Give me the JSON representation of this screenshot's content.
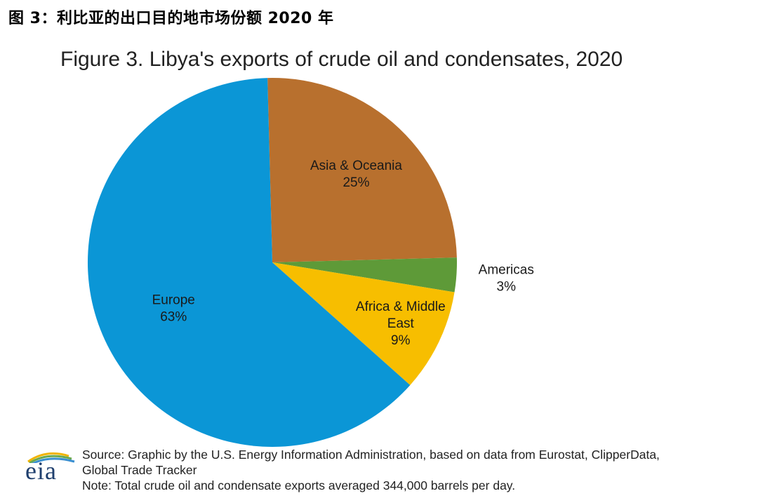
{
  "caption": "图 3：利比亚的出口目的地市场份额 2020 年",
  "chart_data": {
    "type": "pie",
    "title": "Figure 3. Libya's exports of crude oil and condensates, 2020",
    "slices": [
      {
        "name": "Asia & Oceania",
        "value": 25,
        "label_lines": [
          "Asia & Oceania",
          "25%"
        ],
        "color": "#b8702e"
      },
      {
        "name": "Americas",
        "value": 3,
        "label_lines": [
          "Americas",
          "3%"
        ],
        "color": "#5e9a38"
      },
      {
        "name": "Africa & Middle East",
        "value": 9,
        "label_lines": [
          "Africa & Middle",
          "East",
          "9%"
        ],
        "color": "#f7be00"
      },
      {
        "name": "Europe",
        "value": 63,
        "label_lines": [
          "Europe",
          "63%"
        ],
        "color": "#0b96d6"
      }
    ]
  },
  "logo": {
    "text": "eia",
    "icon": "eia-logo"
  },
  "source": {
    "line1": "Source: Graphic by the U.S. Energy Information Administration, based on data from Eurostat, ClipperData,",
    "line2": "Global Trade Tracker",
    "note": "Note: Total crude oil and condensate exports averaged 344,000 barrels per day."
  }
}
